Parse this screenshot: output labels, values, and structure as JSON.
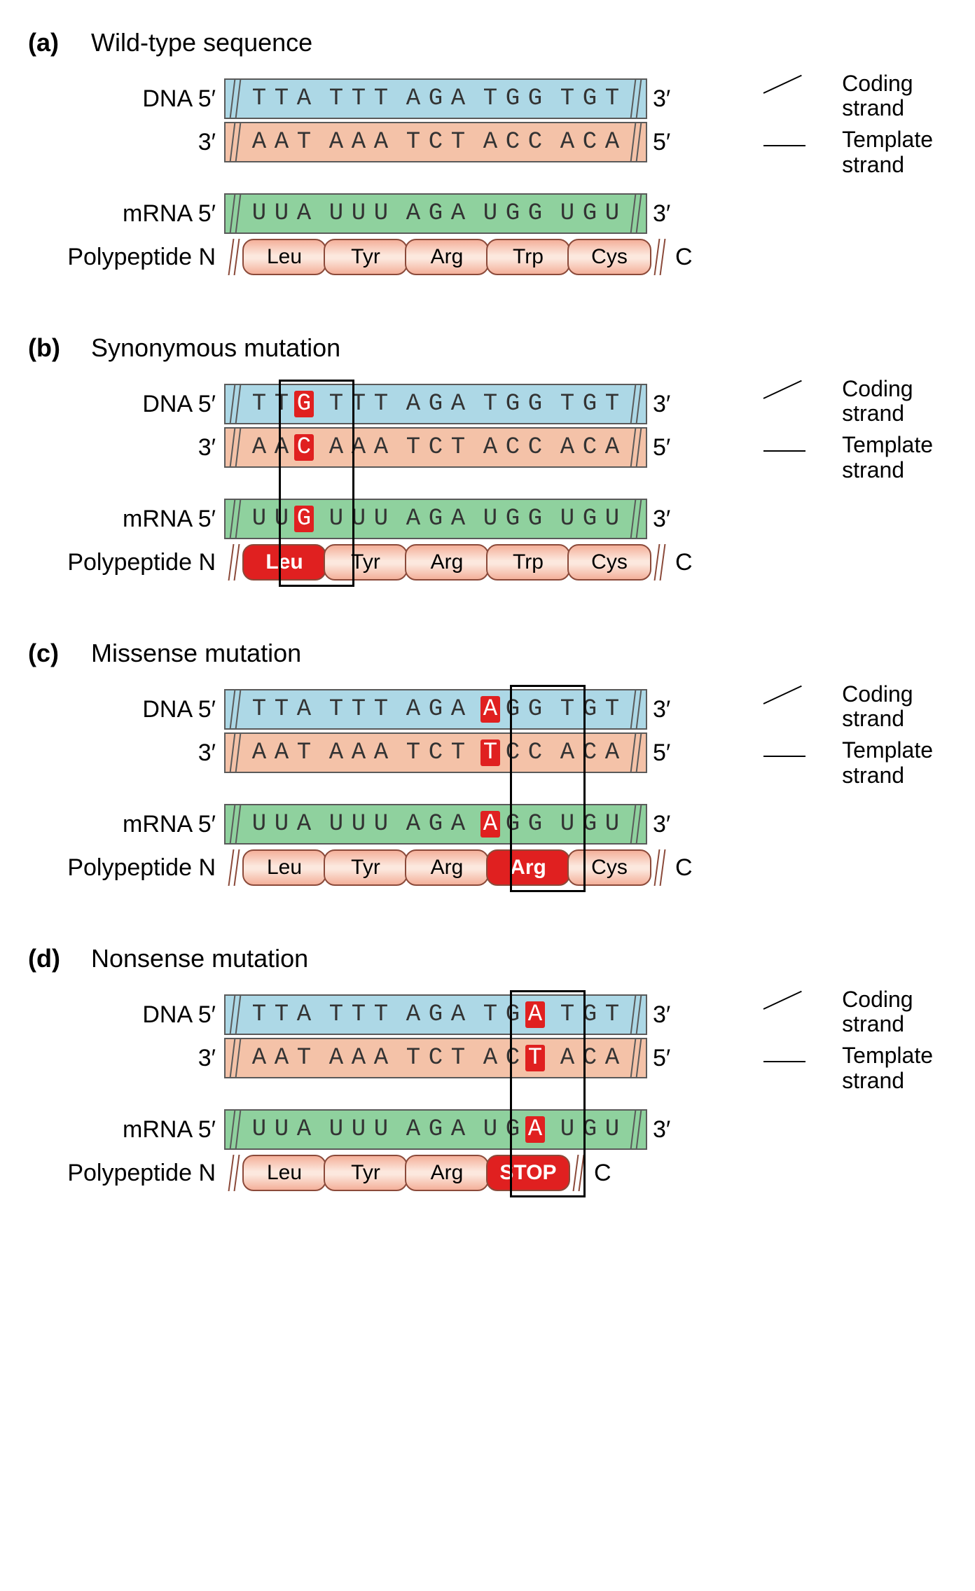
{
  "colors": {
    "coding_bg": "#add8e6",
    "template_bg": "#f4c2a8",
    "mrna_bg": "#8fd19e",
    "aa_gradient_dark": "#f4b09a",
    "aa_gradient_light": "#fce8de",
    "aa_border": "#8b4a3a",
    "mutation_bg": "#e02020",
    "mutation_text": "#ffffff",
    "strand_border": "#5a5a5a",
    "base_text": "#333333"
  },
  "typography": {
    "title_fontsize": 36,
    "row_label_fontsize": 34,
    "base_fontsize": 34,
    "aa_fontsize": 30,
    "annot_fontsize": 32,
    "base_font": "Courier New"
  },
  "layout": {
    "panel_gap": 80,
    "row_label_width": 280,
    "strand_height": 58,
    "aa_width": 120,
    "aa_height": 52,
    "aa_border_radius": 16,
    "codon_gap": 18,
    "base_width": 28
  },
  "labels": {
    "dna": "DNA",
    "mrna": "mRNA",
    "polypeptide": "Polypeptide",
    "five_prime": "5′",
    "three_prime": "3′",
    "n_term": "N",
    "c_term": "C",
    "coding_strand": "Coding strand",
    "template_strand": "Template strand"
  },
  "panels": [
    {
      "id": "a",
      "label": "(a)",
      "title": "Wild-type sequence",
      "highlight_codon_index": null,
      "coding": [
        [
          "T",
          "T",
          "A"
        ],
        [
          "T",
          "T",
          "T"
        ],
        [
          "A",
          "G",
          "A"
        ],
        [
          "T",
          "G",
          "G"
        ],
        [
          "T",
          "G",
          "T"
        ]
      ],
      "template": [
        [
          "A",
          "A",
          "T"
        ],
        [
          "A",
          "A",
          "A"
        ],
        [
          "T",
          "C",
          "T"
        ],
        [
          "A",
          "C",
          "C"
        ],
        [
          "A",
          "C",
          "A"
        ]
      ],
      "mrna": [
        [
          "U",
          "U",
          "A"
        ],
        [
          "U",
          "U",
          "U"
        ],
        [
          "A",
          "G",
          "A"
        ],
        [
          "U",
          "G",
          "G"
        ],
        [
          "U",
          "G",
          "U"
        ]
      ],
      "mut_positions": {
        "coding": [],
        "template": [],
        "mrna": []
      },
      "polypeptide": [
        "Leu",
        "Tyr",
        "Arg",
        "Trp",
        "Cys"
      ],
      "aa_mut_index": null,
      "aa_stop_index": null
    },
    {
      "id": "b",
      "label": "(b)",
      "title": "Synonymous mutation",
      "highlight_codon_index": 0,
      "coding": [
        [
          "T",
          "T",
          "G"
        ],
        [
          "T",
          "T",
          "T"
        ],
        [
          "A",
          "G",
          "A"
        ],
        [
          "T",
          "G",
          "G"
        ],
        [
          "T",
          "G",
          "T"
        ]
      ],
      "template": [
        [
          "A",
          "A",
          "C"
        ],
        [
          "A",
          "A",
          "A"
        ],
        [
          "T",
          "C",
          "T"
        ],
        [
          "A",
          "C",
          "C"
        ],
        [
          "A",
          "C",
          "A"
        ]
      ],
      "mrna": [
        [
          "U",
          "U",
          "G"
        ],
        [
          "U",
          "U",
          "U"
        ],
        [
          "A",
          "G",
          "A"
        ],
        [
          "U",
          "G",
          "G"
        ],
        [
          "U",
          "G",
          "U"
        ]
      ],
      "mut_positions": {
        "coding": [
          [
            0,
            2
          ]
        ],
        "template": [
          [
            0,
            2
          ]
        ],
        "mrna": [
          [
            0,
            2
          ]
        ]
      },
      "polypeptide": [
        "Leu",
        "Tyr",
        "Arg",
        "Trp",
        "Cys"
      ],
      "aa_mut_index": 0,
      "aa_stop_index": null
    },
    {
      "id": "c",
      "label": "(c)",
      "title": "Missense mutation",
      "highlight_codon_index": 3,
      "coding": [
        [
          "T",
          "T",
          "A"
        ],
        [
          "T",
          "T",
          "T"
        ],
        [
          "A",
          "G",
          "A"
        ],
        [
          "A",
          "G",
          "G"
        ],
        [
          "T",
          "G",
          "T"
        ]
      ],
      "template": [
        [
          "A",
          "A",
          "T"
        ],
        [
          "A",
          "A",
          "A"
        ],
        [
          "T",
          "C",
          "T"
        ],
        [
          "T",
          "C",
          "C"
        ],
        [
          "A",
          "C",
          "A"
        ]
      ],
      "mrna": [
        [
          "U",
          "U",
          "A"
        ],
        [
          "U",
          "U",
          "U"
        ],
        [
          "A",
          "G",
          "A"
        ],
        [
          "A",
          "G",
          "G"
        ],
        [
          "U",
          "G",
          "U"
        ]
      ],
      "mut_positions": {
        "coding": [
          [
            3,
            0
          ]
        ],
        "template": [
          [
            3,
            0
          ]
        ],
        "mrna": [
          [
            3,
            0
          ]
        ]
      },
      "polypeptide": [
        "Leu",
        "Tyr",
        "Arg",
        "Arg",
        "Cys"
      ],
      "aa_mut_index": 3,
      "aa_stop_index": null
    },
    {
      "id": "d",
      "label": "(d)",
      "title": "Nonsense mutation",
      "highlight_codon_index": 3,
      "coding": [
        [
          "T",
          "T",
          "A"
        ],
        [
          "T",
          "T",
          "T"
        ],
        [
          "A",
          "G",
          "A"
        ],
        [
          "T",
          "G",
          "A"
        ],
        [
          "T",
          "G",
          "T"
        ]
      ],
      "template": [
        [
          "A",
          "A",
          "T"
        ],
        [
          "A",
          "A",
          "A"
        ],
        [
          "T",
          "C",
          "T"
        ],
        [
          "A",
          "C",
          "T"
        ],
        [
          "A",
          "C",
          "A"
        ]
      ],
      "mrna": [
        [
          "U",
          "U",
          "A"
        ],
        [
          "U",
          "U",
          "U"
        ],
        [
          "A",
          "G",
          "A"
        ],
        [
          "U",
          "G",
          "A"
        ],
        [
          "U",
          "G",
          "U"
        ]
      ],
      "mut_positions": {
        "coding": [
          [
            3,
            2
          ]
        ],
        "template": [
          [
            3,
            2
          ]
        ],
        "mrna": [
          [
            3,
            2
          ]
        ]
      },
      "polypeptide": [
        "Leu",
        "Tyr",
        "Arg",
        "STOP"
      ],
      "aa_mut_index": null,
      "aa_stop_index": 3
    }
  ]
}
